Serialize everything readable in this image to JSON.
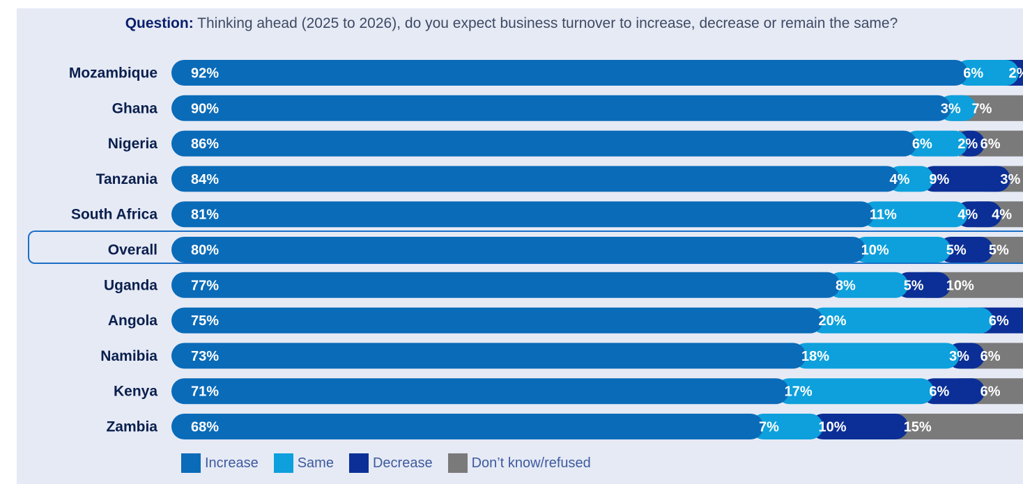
{
  "question": {
    "label": "Question:",
    "text": "Thinking ahead (2025 to 2026), do you expect business turnover to increase, decrease or remain the same?"
  },
  "colors": {
    "increase": "#0a6bb8",
    "same": "#0da0dc",
    "decrease": "#0b2f96",
    "dont_know": "#7a7a7a",
    "panel": "#e6eaf5",
    "highlight": "#1a6fc7"
  },
  "chart_data": {
    "type": "bar",
    "orientation": "horizontal",
    "stacked": true,
    "xlim": [
      0,
      100
    ],
    "highlight_category": "Overall",
    "legend_position": "bottom",
    "categories": [
      "Mozambique",
      "Ghana",
      "Nigeria",
      "Tanzania",
      "South Africa",
      "Overall",
      "Uganda",
      "Angola",
      "Namibia",
      "Kenya",
      "Zambia"
    ],
    "series": [
      {
        "name": "Increase",
        "color": "#0a6bb8",
        "values": [
          92,
          90,
          86,
          84,
          81,
          80,
          77,
          75,
          73,
          71,
          68
        ]
      },
      {
        "name": "Same",
        "color": "#0da0dc",
        "values": [
          6,
          3,
          6,
          4,
          11,
          10,
          8,
          20,
          18,
          17,
          7
        ]
      },
      {
        "name": "Decrease",
        "color": "#0b2f96",
        "values": [
          2,
          0,
          2,
          9,
          4,
          5,
          5,
          6,
          3,
          6,
          10
        ]
      },
      {
        "name": "Don’t know/refused",
        "color": "#7a7a7a",
        "values": [
          0,
          7,
          6,
          3,
          4,
          5,
          10,
          0,
          6,
          6,
          15
        ]
      }
    ]
  }
}
